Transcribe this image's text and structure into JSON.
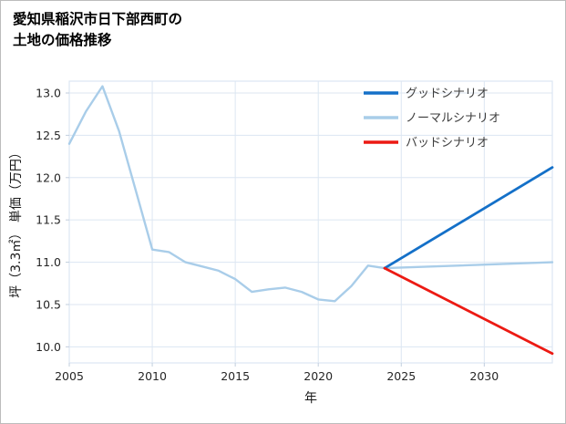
{
  "page": {
    "title_line1": "愛知県稲沢市日下部西町の",
    "title_line2": "土地の価格推移"
  },
  "chart_data": {
    "type": "line",
    "title": "愛知県稲沢市日下部西町の土地の価格推移",
    "xlabel": "年",
    "ylabel": "坪（3.3㎡） 単価（万円）",
    "xlim": [
      2005,
      2034.1
    ],
    "ylim": [
      9.81,
      13.14
    ],
    "xticks": [
      2005,
      2010,
      2015,
      2020,
      2025,
      2030
    ],
    "xtick_labels": [
      "2005",
      "2010",
      "2015",
      "2020",
      "2025",
      "2030"
    ],
    "yticks": [
      10.0,
      10.5,
      11.0,
      11.5,
      12.0,
      12.5,
      13.0
    ],
    "ytick_labels": [
      "10.0",
      "10.5",
      "11.0",
      "11.5",
      "12.0",
      "12.5",
      "13.0"
    ],
    "grid": true,
    "legend_position": "upper right",
    "colors": {
      "good": "#1470c8",
      "normal": "#a9cde9",
      "bad": "#ec1a13",
      "grid": "#dce6f2",
      "tick_mark": "#c2cede",
      "tick_text": "#262626",
      "legend_text": "#3d3d3d"
    },
    "series": [
      {
        "name": "グッドシナリオ",
        "key": "good",
        "color": "#1470c8",
        "x": [
          2024,
          2034.1
        ],
        "y": [
          10.93,
          12.12
        ]
      },
      {
        "name": "ノーマルシナリオ",
        "key": "normal",
        "color": "#a9cde9",
        "x": [
          2005,
          2006,
          2007,
          2008,
          2009,
          2010,
          2011,
          2012,
          2013,
          2014,
          2015,
          2016,
          2017,
          2018,
          2019,
          2020,
          2021,
          2022,
          2023,
          2024,
          2034.1
        ],
        "y": [
          12.4,
          12.78,
          13.08,
          12.55,
          11.85,
          11.15,
          11.12,
          11.0,
          10.95,
          10.9,
          10.8,
          10.65,
          10.68,
          10.7,
          10.65,
          10.56,
          10.54,
          10.72,
          10.96,
          10.93,
          11.0
        ]
      },
      {
        "name": "バッドシナリオ",
        "key": "bad",
        "color": "#ec1a13",
        "x": [
          2024,
          2034.1
        ],
        "y": [
          10.93,
          9.92
        ]
      }
    ]
  }
}
